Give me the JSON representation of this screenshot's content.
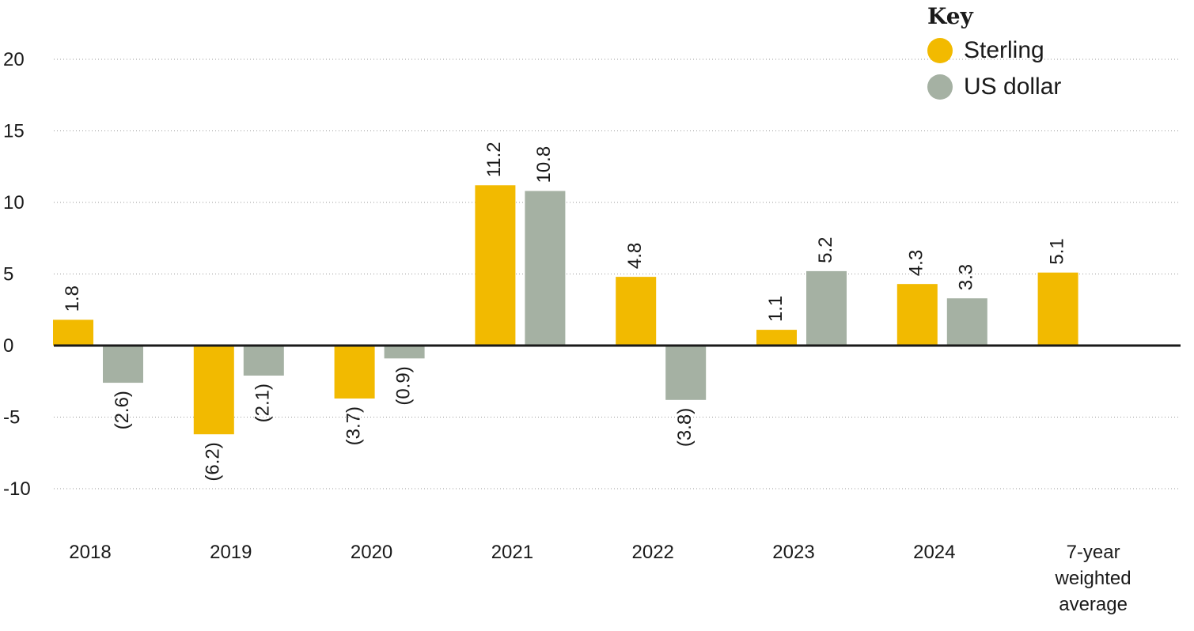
{
  "chart_data": {
    "type": "bar",
    "categories": [
      "2018",
      "2019",
      "2020",
      "2021",
      "2022",
      "2023",
      "2024",
      "7-year weighted average"
    ],
    "series": [
      {
        "name": "Sterling",
        "color": "#F2BA00",
        "values": [
          1.8,
          -6.2,
          -3.7,
          11.2,
          4.8,
          1.1,
          4.3,
          5.1
        ],
        "labels": [
          "1.8",
          "(6.2)",
          "(3.7)",
          "11.2",
          "4.8",
          "1.1",
          "4.3",
          "5.1"
        ]
      },
      {
        "name": "US dollar",
        "color": "#A5B1A3",
        "values": [
          -2.6,
          -2.1,
          -0.9,
          10.8,
          -3.8,
          5.2,
          3.3,
          null
        ],
        "labels": [
          "(2.6)",
          "(2.1)",
          "(0.9)",
          "10.8",
          "(3.8)",
          "5.2",
          "3.3",
          null
        ]
      }
    ],
    "yticks": [
      "20",
      "15",
      "10",
      "5",
      "0",
      "-5",
      "-10"
    ],
    "ylim": [
      -12,
      22
    ],
    "grid": true,
    "legend": {
      "title": "Key",
      "placement": "top-right"
    }
  }
}
